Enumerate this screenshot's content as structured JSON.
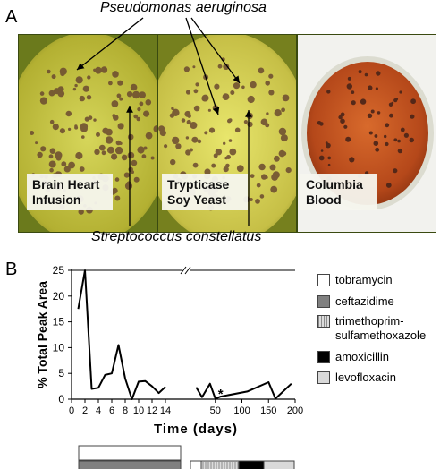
{
  "panel_a": {
    "letter": "A",
    "top_organism": "Pseudomonas aeruginosa",
    "bottom_organism": "Streptococcus constellatus",
    "plates": [
      {
        "label_line1": "Brain Heart",
        "label_line2": "Infusion",
        "medium_color": "#b8b83a"
      },
      {
        "label_line1": "Trypticase",
        "label_line2": "Soy Yeast",
        "medium_color": "#c9c34a"
      },
      {
        "label_line1": "Columbia",
        "label_line2": "Blood",
        "medium_color": "#c0521e"
      }
    ]
  },
  "panel_b": {
    "letter": "B",
    "legend": [
      {
        "label": "tobramycin",
        "color": "#ffffff"
      },
      {
        "label": "ceftazidime",
        "color": "#808080"
      },
      {
        "label": "trimethoprim-\nsulfamethoxazole",
        "color": "#bdbdbd",
        "pattern": "vertical-stripes"
      },
      {
        "label": "amoxicillin",
        "color": "#000000"
      },
      {
        "label": "levofloxacin",
        "color": "#d9d9d9"
      }
    ],
    "annotation_symbol": "*"
  },
  "chart_data": {
    "type": "line",
    "title": "",
    "xlabel": "Time (days)",
    "ylabel": "% Total Peak Area",
    "broken_x_axis": true,
    "segments": [
      {
        "xlim": [
          0,
          16
        ],
        "x_ticks": [
          0,
          2,
          4,
          6,
          8,
          10,
          12,
          14
        ],
        "x": [
          1,
          2,
          3,
          4,
          5,
          6,
          7,
          8,
          9,
          10,
          11,
          12,
          13,
          14
        ],
        "y": [
          17.5,
          25,
          2,
          2.2,
          4.7,
          5,
          10.5,
          4,
          0,
          3.4,
          3.5,
          2.5,
          1.2,
          2.4
        ]
      },
      {
        "xlim": [
          5,
          200
        ],
        "x_ticks": [
          50,
          100,
          150,
          200
        ],
        "x": [
          14,
          25,
          40,
          50,
          60,
          110,
          150,
          163,
          193
        ],
        "y": [
          2.3,
          0.4,
          3,
          0.1,
          0.5,
          1.5,
          3.3,
          0.1,
          3
        ]
      }
    ],
    "ylim": [
      0,
      25
    ],
    "y_ticks": [
      0,
      5,
      10,
      15,
      20,
      25
    ],
    "asterisk_x": 60,
    "grid": false,
    "treatment_bars": {
      "left": [
        {
          "legend": "tobramycin"
        },
        {
          "legend": "ceftazidime"
        }
      ],
      "right": [
        "tobramycin",
        "trimethoprim-sulfamethoxazole",
        "amoxicillin",
        "levofloxacin"
      ]
    }
  }
}
